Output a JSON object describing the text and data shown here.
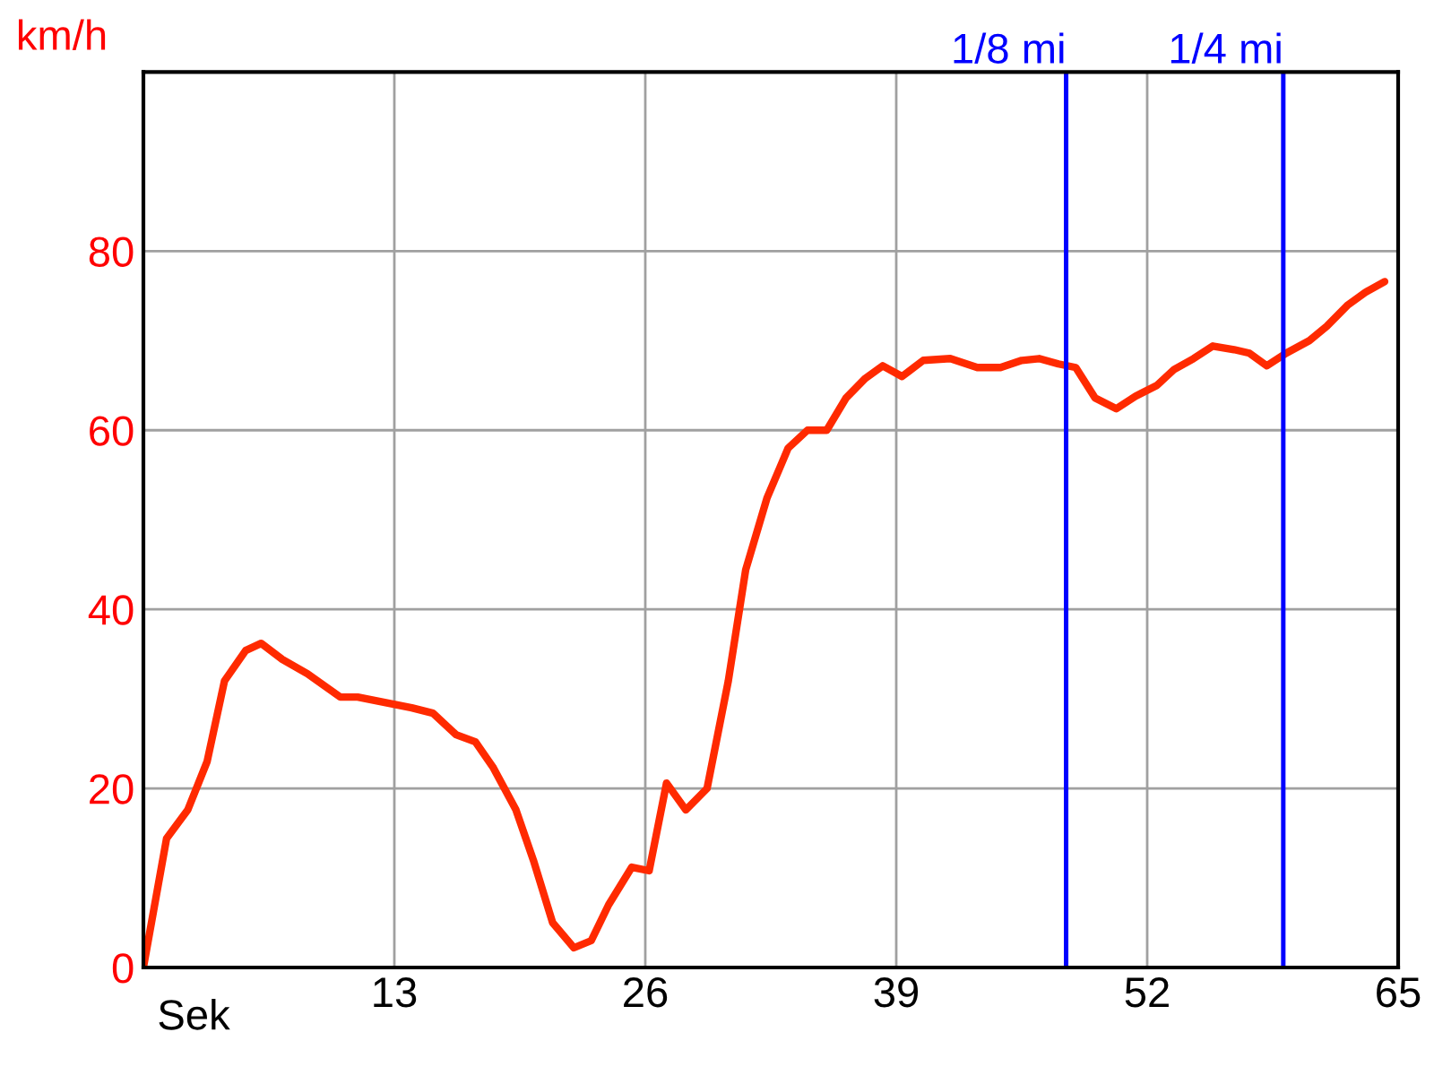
{
  "chart_data": {
    "type": "line",
    "xlabel": "Sek",
    "ylabel": "km/h",
    "x": [
      0,
      1.2,
      2.3,
      3.3,
      4.2,
      5.3,
      6.1,
      7.2,
      8.5,
      10.2,
      11.1,
      12.5,
      13.9,
      15.0,
      16.2,
      17.2,
      18.1,
      19.3,
      20.2,
      21.2,
      22.3,
      23.2,
      24.1,
      25.3,
      26.2,
      27.1,
      28.1,
      29.2,
      30.3,
      31.2,
      32.3,
      33.4,
      34.4,
      35.4,
      36.4,
      37.4,
      38.3,
      39.3,
      40.4,
      41.8,
      43.2,
      44.4,
      45.5,
      46.4,
      47.4,
      48.3,
      49.3,
      50.4,
      51.4,
      52.5,
      53.4,
      54.4,
      55.4,
      56.5,
      57.3,
      58.2,
      59.2,
      60.4,
      61.3,
      62.4,
      63.3,
      64.3
    ],
    "series": [
      {
        "color": "#ff2a00",
        "values": [
          0,
          14.4,
          17.6,
          23,
          32,
          35.4,
          36.2,
          34.4,
          32.8,
          30.2,
          30.2,
          29.6,
          29,
          28.4,
          26,
          25.2,
          22.4,
          17.6,
          12,
          5,
          2.2,
          3,
          7,
          11.2,
          10.8,
          20.6,
          17.6,
          20,
          32,
          44.4,
          52.4,
          58,
          60,
          60,
          63.6,
          65.8,
          67.2,
          66,
          67.8,
          68,
          67,
          67,
          67.8,
          68,
          67.4,
          67,
          63.6,
          62.4,
          63.8,
          65,
          66.8,
          68,
          69.4,
          69,
          68.6,
          67.2,
          68.6,
          70,
          71.6,
          74,
          75.4,
          76.6
        ]
      }
    ],
    "xlim": [
      0,
      65
    ],
    "xticks": [
      13,
      26,
      39,
      52,
      65
    ],
    "ylim": [
      0,
      100
    ],
    "yticks": [
      0,
      20,
      40,
      60,
      80
    ],
    "grid": true,
    "marker": "none",
    "line_style": "solid",
    "ref_lines": [
      {
        "axis": "x",
        "value": 47.8,
        "label": "1/8 mi",
        "color": "#0000ff"
      },
      {
        "axis": "x",
        "value": 59.05,
        "label": "1/4 mi",
        "color": "#0000ff"
      }
    ]
  }
}
